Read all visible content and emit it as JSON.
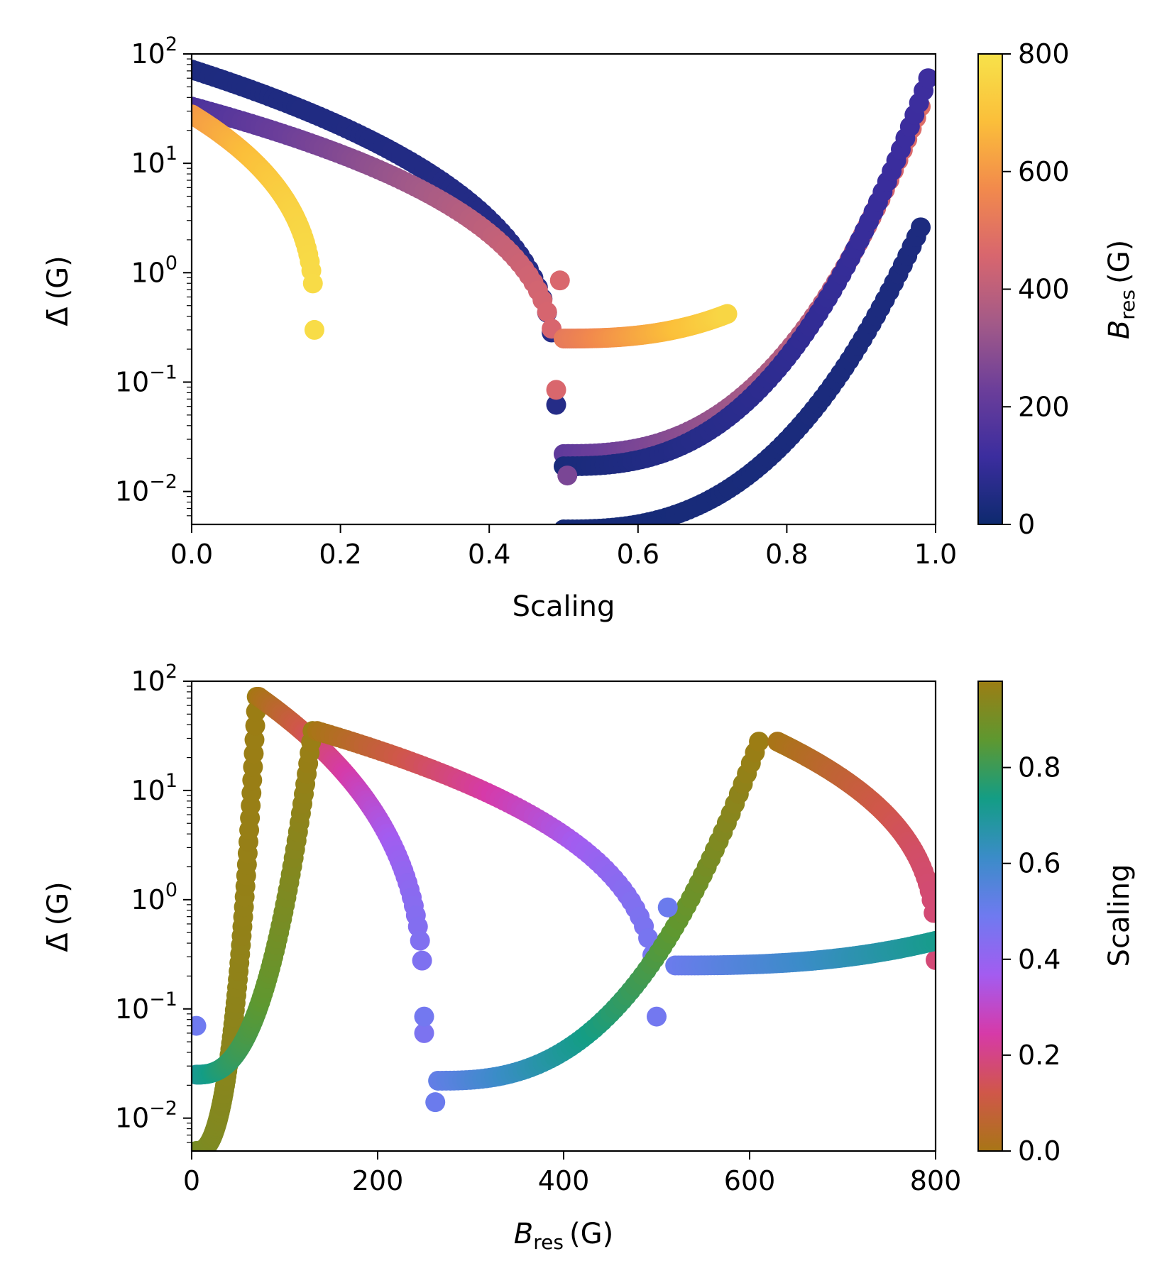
{
  "figure": {
    "description_free": true
  },
  "chart_data": [
    {
      "type": "scatter",
      "panel": "top",
      "xlabel": "Scaling",
      "ylabel_main": "Δ̄",
      "ylabel_unit": "(G)",
      "xlim": [
        0.0,
        1.0
      ],
      "ylim_log10": [
        -2.301,
        2.0
      ],
      "y_scale": "log",
      "x_ticks": [
        "0.0",
        "0.2",
        "0.4",
        "0.6",
        "0.8",
        "1.0"
      ],
      "x_tick_values": [
        0.0,
        0.2,
        0.4,
        0.6,
        0.8,
        1.0
      ],
      "y_tick_exponents": [
        "2",
        "1",
        "0",
        "−1",
        "−2"
      ],
      "y_tick_values": [
        2,
        1,
        0,
        -1,
        -2
      ],
      "y_tick_base": "10",
      "colorbar": {
        "label_var": "B",
        "label_sub": "res",
        "label_unit": "(G)",
        "ticks": [
          "0",
          "200",
          "400",
          "600",
          "800"
        ],
        "tick_values": [
          0,
          200,
          400,
          600,
          800
        ],
        "range": [
          0,
          800
        ],
        "colormap": "plasma-like",
        "stops": [
          "#0d2a6e",
          "#3b2d9e",
          "#6b3e9a",
          "#a35a88",
          "#d8666e",
          "#f28a4c",
          "#fbbf3a",
          "#f7e24a"
        ]
      },
      "series": [
        {
          "name": "branch-a-dark",
          "x_range": [
            0.0,
            0.49
          ],
          "color_value_range": [
            40,
            60
          ],
          "y_start": 72,
          "y_end": 0.062
        },
        {
          "name": "branch-a-dark-lower",
          "x_range": [
            0.5,
            0.98
          ],
          "color_value_range": [
            20,
            40
          ],
          "y_start": 0.0045,
          "y_end": 2.6
        },
        {
          "name": "branch-b",
          "x_range": [
            0.0,
            0.49
          ],
          "color_value_range": [
            150,
            460
          ],
          "y_start": 33,
          "y_end": 0.085
        },
        {
          "name": "branch-c",
          "x_range": [
            0.0,
            0.165
          ],
          "color_value_range": [
            600,
            780
          ],
          "y_start": 28,
          "y_end": 0.3
        },
        {
          "name": "branch-d",
          "x_range": [
            0.5,
            0.72
          ],
          "color_value_range": [
            520,
            760
          ],
          "y_start": 0.25,
          "y_end": 0.42
        },
        {
          "name": "branch-e",
          "x_range": [
            0.5,
            0.98
          ],
          "color_value_range": [
            200,
            480
          ],
          "y_start": 0.022,
          "y_end": 33
        },
        {
          "name": "branch-f",
          "x_range": [
            0.5,
            0.99
          ],
          "color_value_range": [
            30,
            120
          ],
          "y_start": 0.017,
          "y_end": 60
        }
      ],
      "isolated_points": [
        {
          "x": 0.495,
          "y": 0.85,
          "c": 460
        },
        {
          "x": 0.505,
          "y": 0.014,
          "c": 260
        }
      ]
    },
    {
      "type": "scatter",
      "panel": "bottom",
      "xlabel_var": "B",
      "xlabel_sub": "res",
      "xlabel_unit": "(G)",
      "ylabel_main": "Δ̄",
      "ylabel_unit": "(G)",
      "xlim": [
        0,
        800
      ],
      "ylim_log10": [
        -2.301,
        2.0
      ],
      "y_scale": "log",
      "x_ticks": [
        "0",
        "200",
        "400",
        "600",
        "800"
      ],
      "x_tick_values": [
        0,
        200,
        400,
        600,
        800
      ],
      "y_tick_exponents": [
        "2",
        "1",
        "0",
        "−1",
        "−2"
      ],
      "y_tick_values": [
        2,
        1,
        0,
        -1,
        -2
      ],
      "y_tick_base": "10",
      "colorbar": {
        "label": "Scaling",
        "ticks": [
          "0.0",
          "0.2",
          "0.4",
          "0.6",
          "0.8"
        ],
        "tick_values": [
          0.0,
          0.2,
          0.4,
          0.6,
          0.8
        ],
        "range": [
          0.0,
          0.98
        ],
        "colormap": "hue-cycle",
        "stops": [
          "#a87516",
          "#d0574a",
          "#d63aa8",
          "#a35cf0",
          "#6f7af0",
          "#3b8cc8",
          "#139d85",
          "#5e9830",
          "#9c7d14"
        ]
      },
      "series": [
        {
          "name": "peak-70-left",
          "x_range": [
            5,
            70
          ],
          "y_start": 0.005,
          "y_end": 72,
          "c_range": [
            0.9,
            0.98
          ]
        },
        {
          "name": "peak-70-right",
          "x_range": [
            72,
            250
          ],
          "y_start": 72,
          "y_end": 0.06,
          "c_range": [
            0.0,
            0.46
          ]
        },
        {
          "name": "peak-130-left",
          "x_range": [
            5,
            130
          ],
          "y_start": 0.025,
          "y_end": 35,
          "c_range": [
            0.7,
            0.98
          ]
        },
        {
          "name": "peak-130-right",
          "x_range": [
            135,
            500
          ],
          "y_start": 35,
          "y_end": 0.085,
          "c_range": [
            0.0,
            0.48
          ]
        },
        {
          "name": "rise-to-620",
          "x_range": [
            265,
            610
          ],
          "y_start": 0.022,
          "y_end": 28,
          "c_range": [
            0.52,
            0.98
          ]
        },
        {
          "name": "peak-620-right",
          "x_range": [
            630,
            800
          ],
          "y_start": 28,
          "y_end": 0.28,
          "c_range": [
            0.0,
            0.18
          ]
        },
        {
          "name": "flat-tail",
          "x_range": [
            520,
            800
          ],
          "y_start": 0.25,
          "y_end": 0.42,
          "c_range": [
            0.5,
            0.72
          ]
        }
      ],
      "isolated_points": [
        {
          "x": 512,
          "y": 0.85,
          "c": 0.5
        },
        {
          "x": 262,
          "y": 0.014,
          "c": 0.5
        },
        {
          "x": 5,
          "y": 0.07,
          "c": 0.49
        },
        {
          "x": 250,
          "y": 0.085,
          "c": 0.48
        }
      ]
    }
  ]
}
